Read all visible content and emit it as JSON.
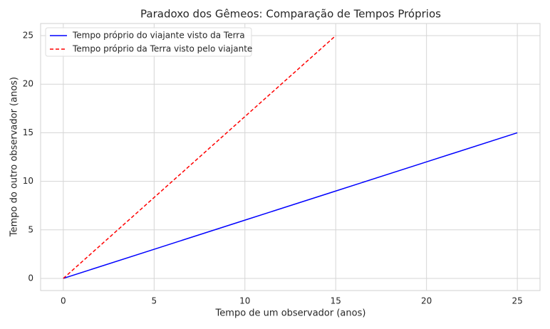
{
  "chart_data": {
    "type": "line",
    "title": "Paradoxo dos Gêmeos: Comparação de Tempos Próprios",
    "x_label": "Tempo de um observador (anos)",
    "y_label": "Tempo do outro observador (anos)",
    "x": [
      0,
      5,
      10,
      15,
      20,
      25
    ],
    "series": [
      {
        "name": "Tempo próprio do viajante visto da Terra",
        "color": "#0000ff",
        "linestyle": "solid",
        "values": [
          0,
          3,
          6,
          9,
          12,
          15
        ]
      },
      {
        "name": "Tempo próprio da Terra visto pelo viajante",
        "color": "#ff0000",
        "linestyle": "dashed",
        "values": [
          0,
          8.333,
          16.667,
          25,
          null,
          null
        ]
      }
    ],
    "xlim": [
      -1.25,
      26.25
    ],
    "ylim": [
      -1.25,
      26.25
    ],
    "xticks": [
      0,
      5,
      10,
      15,
      20,
      25
    ],
    "yticks": [
      0,
      5,
      10,
      15,
      20,
      25
    ],
    "grid": true,
    "legend_position": "upper-left"
  }
}
